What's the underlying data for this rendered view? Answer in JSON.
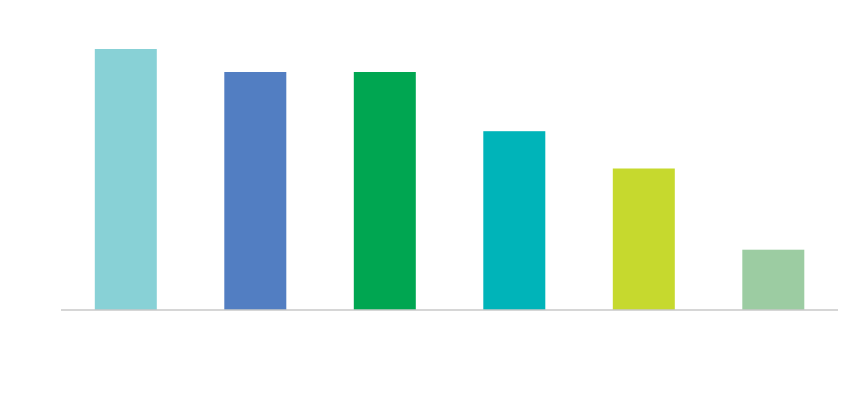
{
  "chart_data": {
    "type": "bar",
    "title": "",
    "xlabel": "",
    "ylabel": "",
    "categories": [
      "",
      "",
      "",
      "",
      "",
      ""
    ],
    "values": [
      100,
      91.2,
      91.2,
      68.5,
      54.2,
      23.1
    ],
    "ylim": [
      0,
      100
    ],
    "grid": false,
    "legend": "none",
    "colors": [
      "#88D1D6",
      "#527EC2",
      "#00A651",
      "#00B4B9",
      "#C6D92E",
      "#9CCCA2"
    ],
    "axis_color": "#C8C8C8"
  }
}
